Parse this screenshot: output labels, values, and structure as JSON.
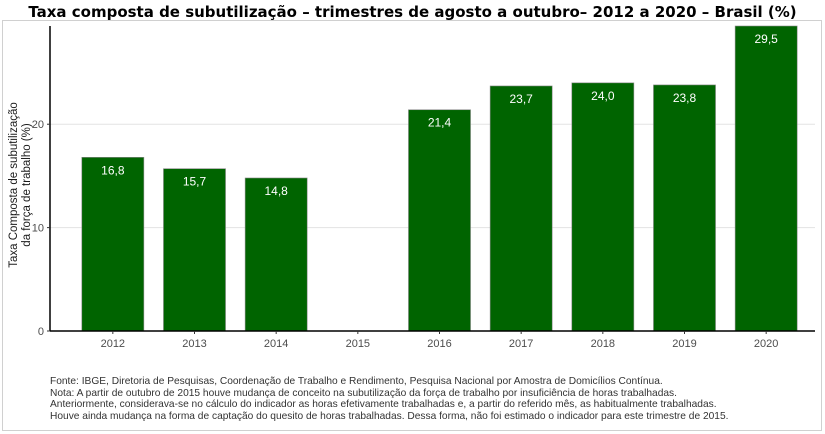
{
  "chart_data": {
    "type": "bar",
    "title": "Taxa composta de subutilização – trimestres de agosto a outubro– 2012 a 2020 – Brasil (%)",
    "ylabel_lines": [
      "Taxa Composta de subutilização",
      "da força de trabalho (%)"
    ],
    "xlabel": "",
    "categories": [
      "2012",
      "2013",
      "2014",
      "2015",
      "2016",
      "2017",
      "2018",
      "2019",
      "2020"
    ],
    "values": [
      16.8,
      15.7,
      14.8,
      null,
      21.4,
      23.7,
      24.0,
      23.8,
      29.5
    ],
    "value_labels": [
      "16,8",
      "15,7",
      "14,8",
      "",
      "21,4",
      "23,7",
      "24,0",
      "23,8",
      "29,5"
    ],
    "yticks": [
      0,
      10,
      20
    ],
    "ytick_labels": [
      "0",
      "10",
      "20"
    ],
    "ylim": [
      0,
      29.5
    ],
    "bar_color": "#006400",
    "grid": true,
    "legend": "none"
  },
  "notes": [
    "Fonte: IBGE, Diretoria de Pesquisas, Coordenação de Trabalho e Rendimento, Pesquisa Nacional por Amostra de Domicílios Contínua.",
    "Nota: A partir de outubro de 2015 houve mudança de conceito na subutilização da força de trabalho por insuficiência de horas trabalhadas.",
    "Anteriormente, considerava-se no cálculo do indicador as horas efetivamente trabalhadas e, a partir do referido mês, as habitualmente trabalhadas.",
    "Houve ainda mudança na forma de captação do quesito de horas trabalhadas. Dessa forma, não foi estimado o indicador para este trimestre de 2015."
  ]
}
